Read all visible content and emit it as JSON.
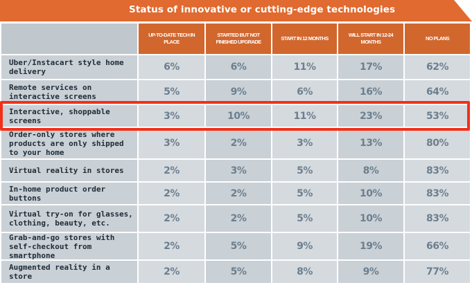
{
  "chart_data": {
    "type": "table",
    "title": "Status of innovative or cutting-edge technologies",
    "columns": [
      "UP-TO-DATE TECH IN PLACE",
      "STARTED BUT NOT FINISHED UPGRADE",
      "START IN 12 MONTHS",
      "WILL START IN 12-24 MONTHS",
      "NO PLANS"
    ],
    "rows": [
      {
        "label": "Uber/Instacart style home delivery",
        "values": [
          "6%",
          "6%",
          "11%",
          "17%",
          "62%"
        ]
      },
      {
        "label": "Remote services on interactive screens",
        "values": [
          "5%",
          "9%",
          "6%",
          "16%",
          "64%"
        ]
      },
      {
        "label": "Interactive, shoppable screens",
        "values": [
          "3%",
          "10%",
          "11%",
          "23%",
          "53%"
        ]
      },
      {
        "label": "Order-only stores where products are only shipped to your home",
        "values": [
          "3%",
          "2%",
          "3%",
          "13%",
          "80%"
        ]
      },
      {
        "label": "Virtual reality in stores",
        "values": [
          "2%",
          "3%",
          "5%",
          "8%",
          "83%"
        ]
      },
      {
        "label": "In-home product order buttons",
        "values": [
          "2%",
          "2%",
          "5%",
          "10%",
          "83%"
        ]
      },
      {
        "label": "Virtual try-on for glasses, clothing, beauty, etc.",
        "values": [
          "2%",
          "2%",
          "5%",
          "10%",
          "83%"
        ]
      },
      {
        "label": "Grab-and-go stores with self-checkout from smartphone",
        "values": [
          "2%",
          "5%",
          "9%",
          "19%",
          "66%"
        ]
      },
      {
        "label": "Augmented reality in a store",
        "values": [
          "2%",
          "5%",
          "8%",
          "9%",
          "77%"
        ]
      }
    ],
    "highlighted_row": 2,
    "colors": {
      "header": "#d2672e",
      "highlight_border": "#f2301a",
      "value_text": "#6c7f8e",
      "label_text": "#1f2b36"
    }
  }
}
